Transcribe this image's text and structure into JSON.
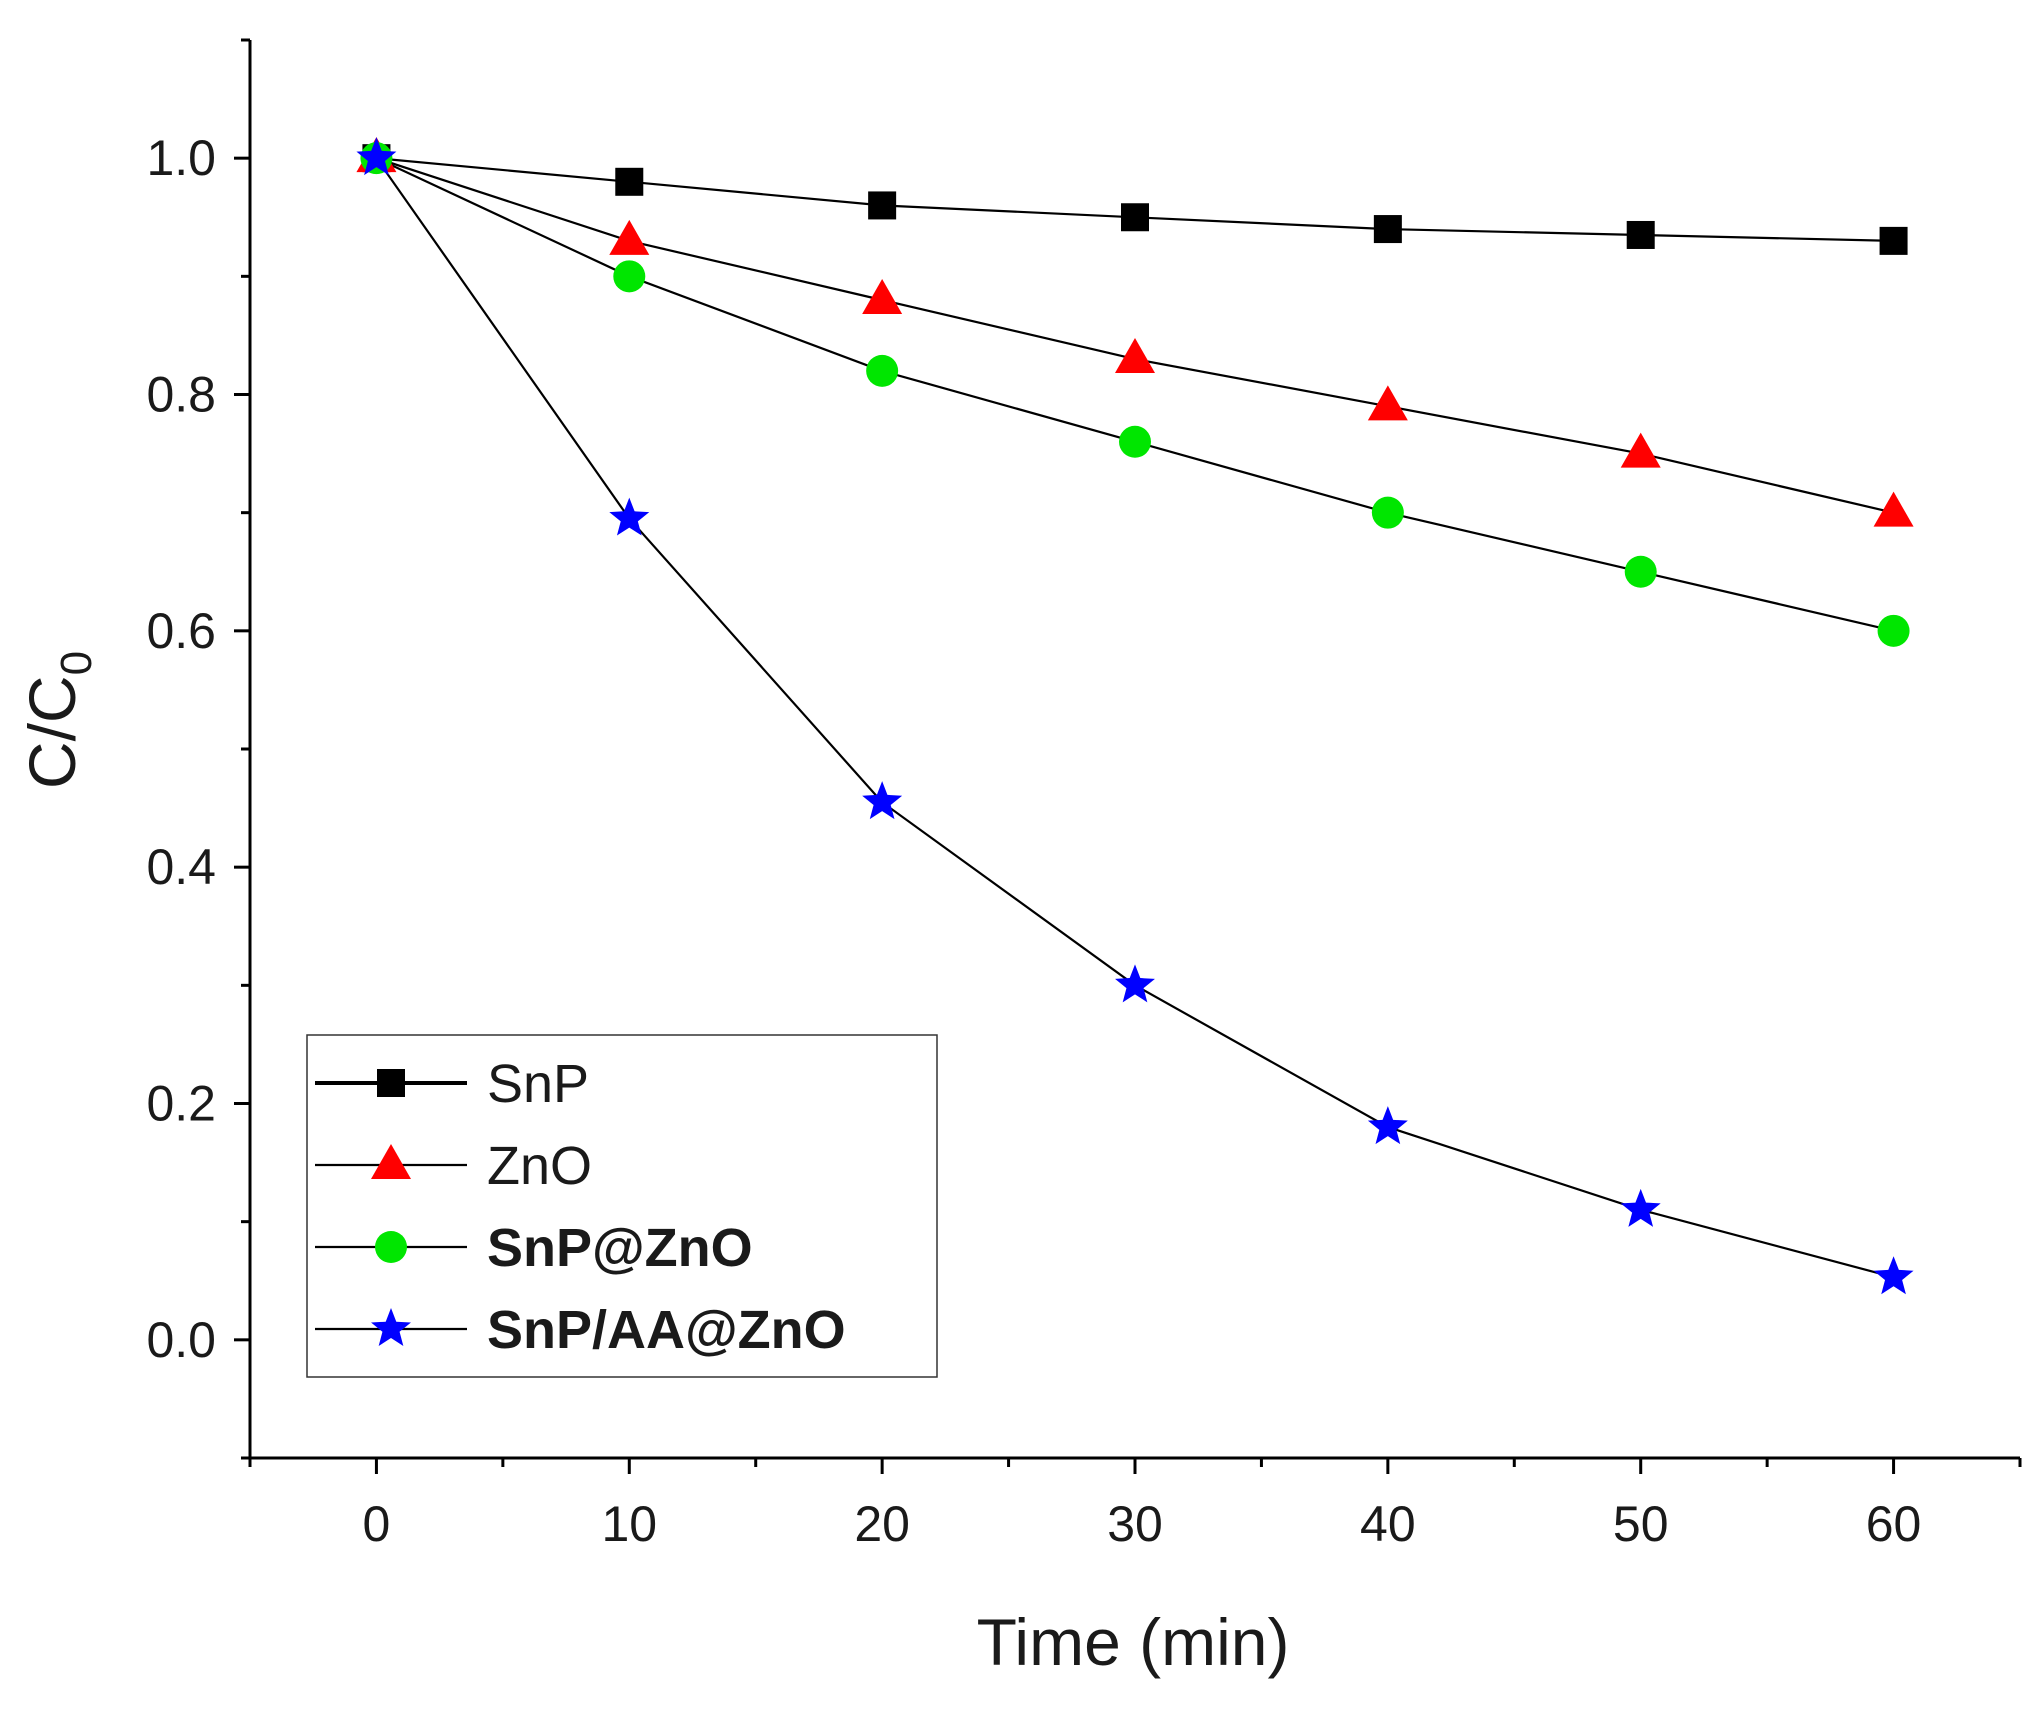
{
  "chart_data": {
    "type": "line",
    "xlabel": "Time (min)",
    "ylabel_main": "C/C",
    "ylabel_sub": "0",
    "xlim": [
      -5,
      65
    ],
    "ylim": [
      -0.1,
      1.1
    ],
    "x_ticks": [
      0,
      10,
      20,
      30,
      40,
      50,
      60
    ],
    "x_tick_labels": [
      "0",
      "10",
      "20",
      "30",
      "40",
      "50",
      "60"
    ],
    "y_ticks": [
      0.0,
      0.2,
      0.4,
      0.6,
      0.8,
      1.0
    ],
    "y_tick_labels": [
      "0.0",
      "0.2",
      "0.4",
      "0.6",
      "0.8",
      "1.0"
    ],
    "grid": false,
    "legend_position": "bottom-left",
    "x": [
      0,
      10,
      20,
      30,
      40,
      50,
      60
    ],
    "series": [
      {
        "name": "SnP",
        "marker": "square",
        "color": "#000000",
        "bold": false,
        "values": [
          1.0,
          0.98,
          0.96,
          0.95,
          0.94,
          0.935,
          0.93
        ]
      },
      {
        "name": "ZnO",
        "marker": "triangle",
        "color": "#ff0000",
        "bold": false,
        "values": [
          1.0,
          0.93,
          0.88,
          0.83,
          0.79,
          0.75,
          0.7
        ]
      },
      {
        "name": "SnP@ZnO",
        "marker": "circle",
        "color": "#00e600",
        "bold": true,
        "values": [
          1.0,
          0.9,
          0.82,
          0.76,
          0.7,
          0.65,
          0.6
        ]
      },
      {
        "name": "SnP/AA@ZnO",
        "marker": "star",
        "color": "#0000ff",
        "bold": true,
        "values": [
          1.0,
          0.695,
          0.455,
          0.3,
          0.18,
          0.11,
          0.053
        ]
      }
    ]
  }
}
